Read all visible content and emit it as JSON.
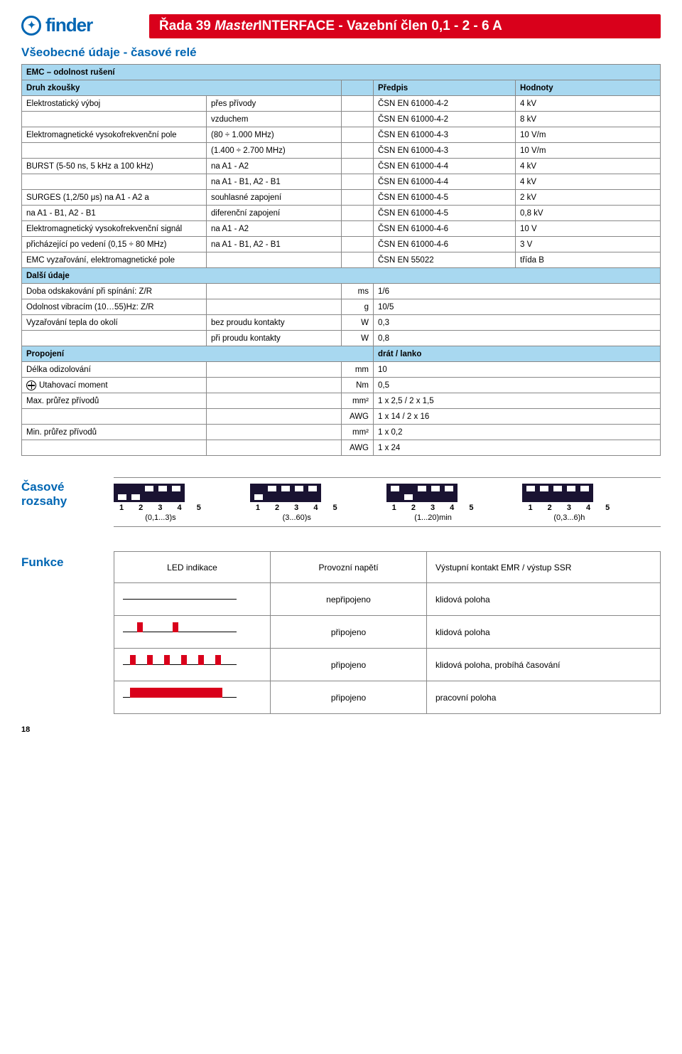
{
  "brand": "finder",
  "title_prefix": "Řada 39 ",
  "title_ital": "Master",
  "title_rest": "INTERFACE - Vazební člen 0,1 - 2 - 6 A",
  "section1": "Všeobecné údaje - časové relé",
  "hdr_emc": "EMC – odolnost rušení",
  "hdr_test": "Druh zkoušky",
  "hdr_std": "Předpis",
  "hdr_val": "Hodnoty",
  "rows_emc": [
    {
      "a": "Elektrostatický výboj",
      "b": "přes přívody",
      "d": "ČSN EN 61000-4-2",
      "e": "4 kV"
    },
    {
      "a": "",
      "b": "vzduchem",
      "d": "ČSN EN 61000-4-2",
      "e": "8 kV"
    },
    {
      "a": "Elektromagnetické vysokofrekvenční pole",
      "b": "(80 ÷ 1.000 MHz)",
      "d": "ČSN EN 61000-4-3",
      "e": "10 V/m"
    },
    {
      "a": "",
      "b": "(1.400 ÷ 2.700 MHz)",
      "d": "ČSN EN 61000-4-3",
      "e": "10 V/m"
    },
    {
      "a": "BURST (5-50 ns, 5 kHz a 100 kHz)",
      "b": "na A1 - A2",
      "d": "ČSN EN 61000-4-4",
      "e": "4 kV"
    },
    {
      "a": "",
      "b": "na A1 - B1, A2 - B1",
      "d": "ČSN EN 61000-4-4",
      "e": "4 kV"
    },
    {
      "a": "SURGES (1,2/50 μs) na A1 - A2 a",
      "b": "souhlasné zapojení",
      "d": "ČSN EN 61000-4-5",
      "e": "2 kV"
    },
    {
      "a": "na A1 - B1, A2 - B1",
      "b": "diferenční zapojení",
      "d": "ČSN EN 61000-4-5",
      "e": "0,8 kV"
    },
    {
      "a": "Elektromagnetický vysokofrekvenční signál",
      "b": "na A1 - A2",
      "d": "ČSN EN 61000-4-6",
      "e": "10 V"
    },
    {
      "a": "přicházející po vedení  (0,15 ÷ 80 MHz)",
      "b": "na A1 - B1, A2 - B1",
      "d": "ČSN EN 61000-4-6",
      "e": "3 V"
    },
    {
      "a": "EMC vyzařování, elektromagnetické pole",
      "b": "",
      "d": "ČSN EN 55022",
      "e": "třída B"
    }
  ],
  "hdr_other": "Další údaje",
  "rows_other": [
    {
      "a": "Doba odskakování při spínání: Z/R",
      "b": "",
      "c": "ms",
      "d": "1/6"
    },
    {
      "a": "Odolnost vibracím (10…55)Hz: Z/R",
      "b": "",
      "c": "g",
      "d": "10/5"
    },
    {
      "a": "Vyzařování tepla do okolí",
      "b": "bez proudu kontakty",
      "c": "W",
      "d": "0,3"
    },
    {
      "a": "",
      "b": "při proudu kontakty",
      "c": "W",
      "d": "0,8"
    }
  ],
  "hdr_conn": "Propojení",
  "conn_val": "drát / lanko",
  "rows_conn": [
    {
      "a": "Délka odizolování",
      "b": "",
      "c": "mm",
      "d": "10"
    },
    {
      "a": "Utahovací moment",
      "b": "",
      "c": "Nm",
      "d": "0,5",
      "screw": true
    },
    {
      "a": "Max. průřez přívodů",
      "b": "",
      "c": "mm²",
      "d": "1 x 2,5 / 2 x 1,5"
    },
    {
      "a": "",
      "b": "",
      "c": "AWG",
      "d": "1 x 14 / 2 x 16"
    },
    {
      "a": "Min. průřez přívodů",
      "b": "",
      "c": "mm²",
      "d": "1 x 0,2"
    },
    {
      "a": "",
      "b": "",
      "c": "AWG",
      "d": "1 x 24"
    }
  ],
  "time_label": "Časové\nrozsahy",
  "dip_nums": "1 2 3 4 5",
  "dips": [
    {
      "range": "(0,1...3)s",
      "sw": [
        0,
        0,
        1,
        1,
        1
      ],
      "desc": "dip switches pos DDUUU"
    },
    {
      "range": "(3...60)s",
      "sw": [
        0,
        1,
        1,
        1,
        1
      ],
      "desc": "dip switches pos DUUUU"
    },
    {
      "range": "(1...20)min",
      "sw": [
        1,
        0,
        1,
        1,
        1
      ],
      "desc": "dip switches pos UDUUU"
    },
    {
      "range": "(0,3...6)h",
      "sw": [
        1,
        1,
        1,
        1,
        1
      ],
      "desc": "dip switches pos UUUUU"
    }
  ],
  "func_label": "Funkce",
  "func_hdr": {
    "led": "LED indikace",
    "op": "Provozní napětí",
    "out": "Výstupní kontakt EMR / výstup SSR"
  },
  "func_rows": [
    {
      "led": "off",
      "op": "nepřipojeno",
      "out": "klidová poloha"
    },
    {
      "led": "2pulse",
      "op": "připojeno",
      "out": "klidová poloha"
    },
    {
      "led": "6pulse",
      "op": "připojeno",
      "out": "klidová poloha, probíhá časování"
    },
    {
      "led": "solid",
      "op": "připojeno",
      "out": "pracovní poloha"
    }
  ],
  "led_color": "#d9001b",
  "dip_bg": "#1a1332",
  "page_num": "18"
}
